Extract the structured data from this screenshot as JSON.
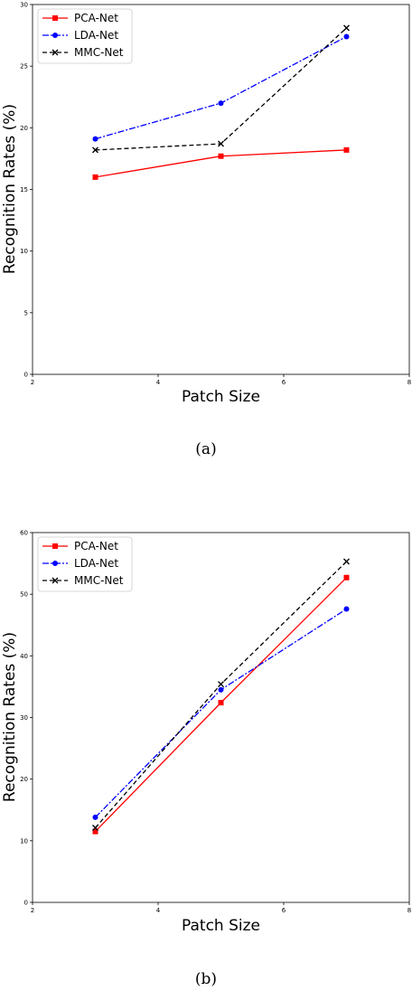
{
  "chart_data": [
    {
      "type": "line",
      "caption": "(a)",
      "xlabel": "Patch Size",
      "ylabel": "Recognition Rates (%)",
      "xlim": [
        2,
        8
      ],
      "ylim": [
        0,
        30
      ],
      "xticks": [
        2,
        4,
        6,
        8
      ],
      "yticks": [
        0,
        5,
        10,
        15,
        20,
        25,
        30
      ],
      "grid": false,
      "legend_position": "upper-left",
      "x": [
        3,
        5,
        7
      ],
      "series": [
        {
          "name": "PCA-Net",
          "values": [
            16.0,
            17.7,
            18.2
          ],
          "color": "#ff0000",
          "linestyle": "solid",
          "marker": "square"
        },
        {
          "name": "LDA-Net",
          "values": [
            19.1,
            22.0,
            27.4
          ],
          "color": "#0000ff",
          "linestyle": "dashdot",
          "marker": "circle"
        },
        {
          "name": "MMC-Net",
          "values": [
            18.2,
            18.7,
            28.1
          ],
          "color": "#000000",
          "linestyle": "dashed",
          "marker": "x"
        }
      ]
    },
    {
      "type": "line",
      "caption": "(b)",
      "xlabel": "Patch Size",
      "ylabel": "Recognition Rates (%)",
      "xlim": [
        2,
        8
      ],
      "ylim": [
        0,
        60
      ],
      "xticks": [
        2,
        4,
        6,
        8
      ],
      "yticks": [
        0,
        10,
        20,
        30,
        40,
        50,
        60
      ],
      "grid": false,
      "legend_position": "upper-left",
      "x": [
        3,
        5,
        7
      ],
      "series": [
        {
          "name": "PCA-Net",
          "values": [
            11.5,
            32.4,
            52.7
          ],
          "color": "#ff0000",
          "linestyle": "solid",
          "marker": "square"
        },
        {
          "name": "LDA-Net",
          "values": [
            13.8,
            34.5,
            47.6
          ],
          "color": "#0000ff",
          "linestyle": "dashdot",
          "marker": "circle"
        },
        {
          "name": "MMC-Net",
          "values": [
            12.1,
            35.4,
            55.3
          ],
          "color": "#000000",
          "linestyle": "dashed",
          "marker": "x"
        }
      ]
    }
  ]
}
